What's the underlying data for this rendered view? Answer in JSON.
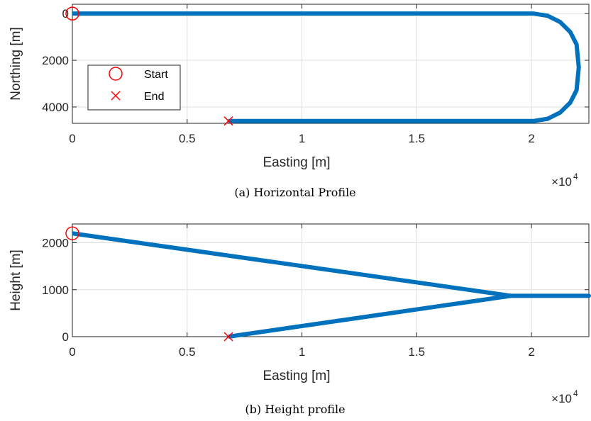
{
  "chart_data": [
    {
      "type": "line",
      "caption": "(a) Horizontal Profile",
      "xlabel": "Easting [m]",
      "ylabel": "Northing [m]",
      "x_multiplier": "×10",
      "x_multiplier_exp": "4",
      "xlim": [
        0,
        22500
      ],
      "ylim": [
        4700,
        -400
      ],
      "y_reversed": true,
      "xticks": [
        0,
        5000,
        10000,
        15000,
        20000
      ],
      "xtick_labels": [
        "0",
        "0.5",
        "1",
        "1.5",
        "2"
      ],
      "yticks": [
        0,
        2000,
        4000
      ],
      "ytick_labels": [
        "0",
        "2000",
        "4000"
      ],
      "grid": true,
      "legend": {
        "placement": "bottom-left",
        "entries": [
          {
            "label": "Start",
            "marker": "circle"
          },
          {
            "label": "End",
            "marker": "x"
          }
        ]
      },
      "series": [
        {
          "x": [
            0,
            20100,
            20708,
            21255,
            21687,
            21964,
            22060,
            21964,
            21687,
            21255,
            20708,
            20100,
            6800
          ],
          "y": [
            0,
            0,
            94,
            365,
            786,
            1320,
            2300,
            3280,
            3814,
            4235,
            4506,
            4600,
            4600
          ],
          "color": "#0072bd"
        }
      ],
      "start": {
        "x": 0,
        "y": 0
      },
      "end": {
        "x": 6800,
        "y": 4600
      }
    },
    {
      "type": "line",
      "caption": "(b) Height profile",
      "xlabel": "Easting [m]",
      "ylabel": "Height [m]",
      "x_multiplier": "×10",
      "x_multiplier_exp": "4",
      "xlim": [
        0,
        22500
      ],
      "ylim": [
        0,
        2400
      ],
      "xticks": [
        0,
        5000,
        10000,
        15000,
        20000
      ],
      "xtick_labels": [
        "0",
        "0.5",
        "1",
        "1.5",
        "2"
      ],
      "yticks": [
        0,
        1000,
        2000
      ],
      "ytick_labels": [
        "0",
        "1000",
        "2000"
      ],
      "grid": true,
      "series": [
        {
          "x": [
            0,
            19100,
            22500,
            19100,
            6800
          ],
          "y": [
            2200,
            870,
            870,
            870,
            0
          ],
          "color": "#0072bd"
        }
      ],
      "start": {
        "x": 0,
        "y": 2200
      },
      "end": {
        "x": 6800,
        "y": 0
      }
    }
  ]
}
